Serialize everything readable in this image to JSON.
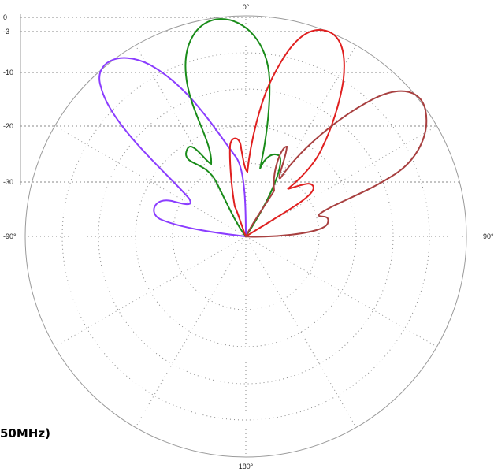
{
  "chart_data": {
    "type": "polar",
    "grid": true,
    "angle_labels": [
      "0°",
      "90°",
      "180°",
      "-90°"
    ],
    "radial_ticks": [
      "0",
      "-3",
      "-10",
      "-20",
      "-30"
    ],
    "caption": "50MHz)",
    "series": [
      {
        "color": "#8b3dff",
        "main_lobe_deg": -45,
        "side_lobe_deg": -72
      },
      {
        "color": "#1a8c1a",
        "main_lobe_deg": -3,
        "side_lobe_deg": -30
      },
      {
        "color": "#e02020",
        "main_lobe_deg": 23,
        "side_lobe_deg": -8
      },
      {
        "color": "#a84040",
        "main_lobe_deg": 48,
        "side_lobe_deg": 75
      }
    ]
  }
}
